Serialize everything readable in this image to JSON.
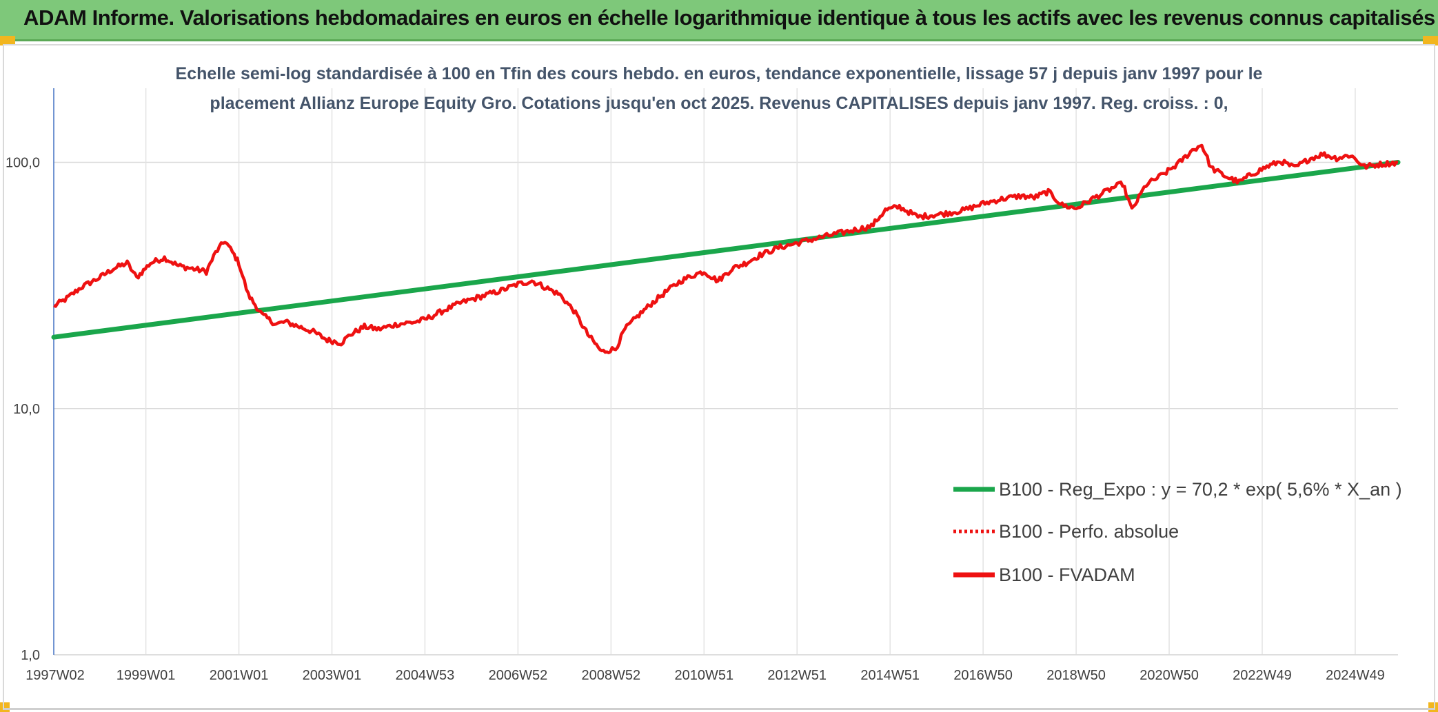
{
  "header": {
    "title": "ADAM Informe. Valorisations hebdomadaires en euros en échelle logarithmique identique à tous les actifs avec les revenus connus capitalisés"
  },
  "colors": {
    "banner": "#7ec87a",
    "regression": "#1aa64b",
    "fvadam": "#ee1111",
    "corner": "#f2b61f"
  },
  "chart_data": {
    "type": "line",
    "subtitle_lines": [
      "Echelle semi-log standardisée à 100 en Tfin des cours hebdo. en euros, tendance exponentielle, lissage 57 j depuis janv 1997 pour le",
      "placement Allianz Europe Equity Gro. Cotations jusqu'en oct 2025. Revenus CAPITALISES depuis janv 1997. Reg. croiss. : 0,"
    ],
    "y_scale": "log",
    "ylim": [
      1,
      200
    ],
    "y_ticks": [
      {
        "value": 1,
        "label": "1,0"
      },
      {
        "value": 10,
        "label": "10,0"
      },
      {
        "value": 100,
        "label": "100,0"
      }
    ],
    "xlim": [
      1997.02,
      2025.92
    ],
    "x_ticks": [
      {
        "value": 1997.02,
        "label": "1997W02"
      },
      {
        "value": 1999.0,
        "label": "1999W01"
      },
      {
        "value": 2001.0,
        "label": "2001W01"
      },
      {
        "value": 2003.0,
        "label": "2003W01"
      },
      {
        "value": 2005.0,
        "label": "2004W53"
      },
      {
        "value": 2007.0,
        "label": "2006W52"
      },
      {
        "value": 2009.0,
        "label": "2008W52"
      },
      {
        "value": 2011.0,
        "label": "2010W51"
      },
      {
        "value": 2013.0,
        "label": "2012W51"
      },
      {
        "value": 2015.0,
        "label": "2014W51"
      },
      {
        "value": 2017.0,
        "label": "2016W50"
      },
      {
        "value": 2019.0,
        "label": "2018W50"
      },
      {
        "value": 2021.0,
        "label": "2020W50"
      },
      {
        "value": 2023.0,
        "label": "2022W49"
      },
      {
        "value": 2025.0,
        "label": "2024W49"
      }
    ],
    "grid": "vertical-and-horizontal",
    "legend_position": "bottom-right",
    "series": [
      {
        "name": "B100 - Reg_Expo : y = 70,2 * exp( 5,6% *  X_an )",
        "style": "solid-green",
        "x": [
          1997.02,
          2025.92
        ],
        "y": [
          19.5,
          100
        ]
      },
      {
        "name": "B100 - Perfo. absolue",
        "style": "dotted-red",
        "x": [],
        "y": []
      },
      {
        "name": "B100 - FVADAM",
        "style": "solid-red",
        "x": [
          1997.02,
          1997.3,
          1997.6,
          1998.0,
          1998.3,
          1998.6,
          1998.8,
          1999.1,
          1999.4,
          1999.7,
          2000.0,
          2000.3,
          2000.5,
          2000.7,
          2000.9,
          2001.0,
          2001.2,
          2001.5,
          2001.8,
          2002.0,
          2002.3,
          2002.6,
          2002.9,
          2003.2,
          2003.4,
          2003.7,
          2004.0,
          2004.4,
          2004.8,
          2005.0,
          2005.4,
          2005.8,
          2006.2,
          2006.6,
          2007.0,
          2007.3,
          2007.6,
          2007.9,
          2008.2,
          2008.5,
          2008.8,
          2009.1,
          2009.3,
          2009.6,
          2009.9,
          2010.2,
          2010.5,
          2010.8,
          2011.0,
          2011.3,
          2011.6,
          2011.9,
          2012.2,
          2012.6,
          2013.0,
          2013.4,
          2013.8,
          2014.2,
          2014.6,
          2014.9,
          2015.2,
          2015.6,
          2015.9,
          2016.2,
          2016.6,
          2017.0,
          2017.4,
          2017.8,
          2018.1,
          2018.4,
          2018.7,
          2019.0,
          2019.4,
          2019.8,
          2020.0,
          2020.2,
          2020.5,
          2020.9,
          2021.2,
          2021.5,
          2021.7,
          2021.9,
          2022.2,
          2022.5,
          2022.8,
          2023.1,
          2023.4,
          2023.7,
          2024.0,
          2024.3,
          2024.6,
          2024.9,
          2025.2,
          2025.5,
          2025.92
        ],
        "y": [
          26,
          28,
          31,
          34,
          37,
          39,
          34,
          39,
          41,
          38,
          37,
          36,
          43,
          48,
          42,
          39,
          29,
          24,
          22,
          22.5,
          21.5,
          20.5,
          19,
          18.5,
          20,
          21.5,
          21,
          22,
          22.5,
          23,
          25,
          27,
          28.5,
          30,
          32,
          33,
          31,
          29,
          25,
          20,
          17,
          17.5,
          21,
          24,
          27,
          30,
          33,
          35,
          36,
          33,
          37,
          39,
          42,
          45,
          47,
          49,
          51,
          53,
          55,
          64,
          66,
          60,
          61,
          62,
          64,
          68,
          71,
          73,
          72,
          76,
          67,
          65,
          72,
          79,
          82,
          64,
          81,
          90,
          99,
          112,
          118,
          95,
          88,
          83,
          90,
          96,
          101,
          95,
          103,
          108,
          104,
          107,
          96,
          98,
          100
        ]
      }
    ]
  }
}
